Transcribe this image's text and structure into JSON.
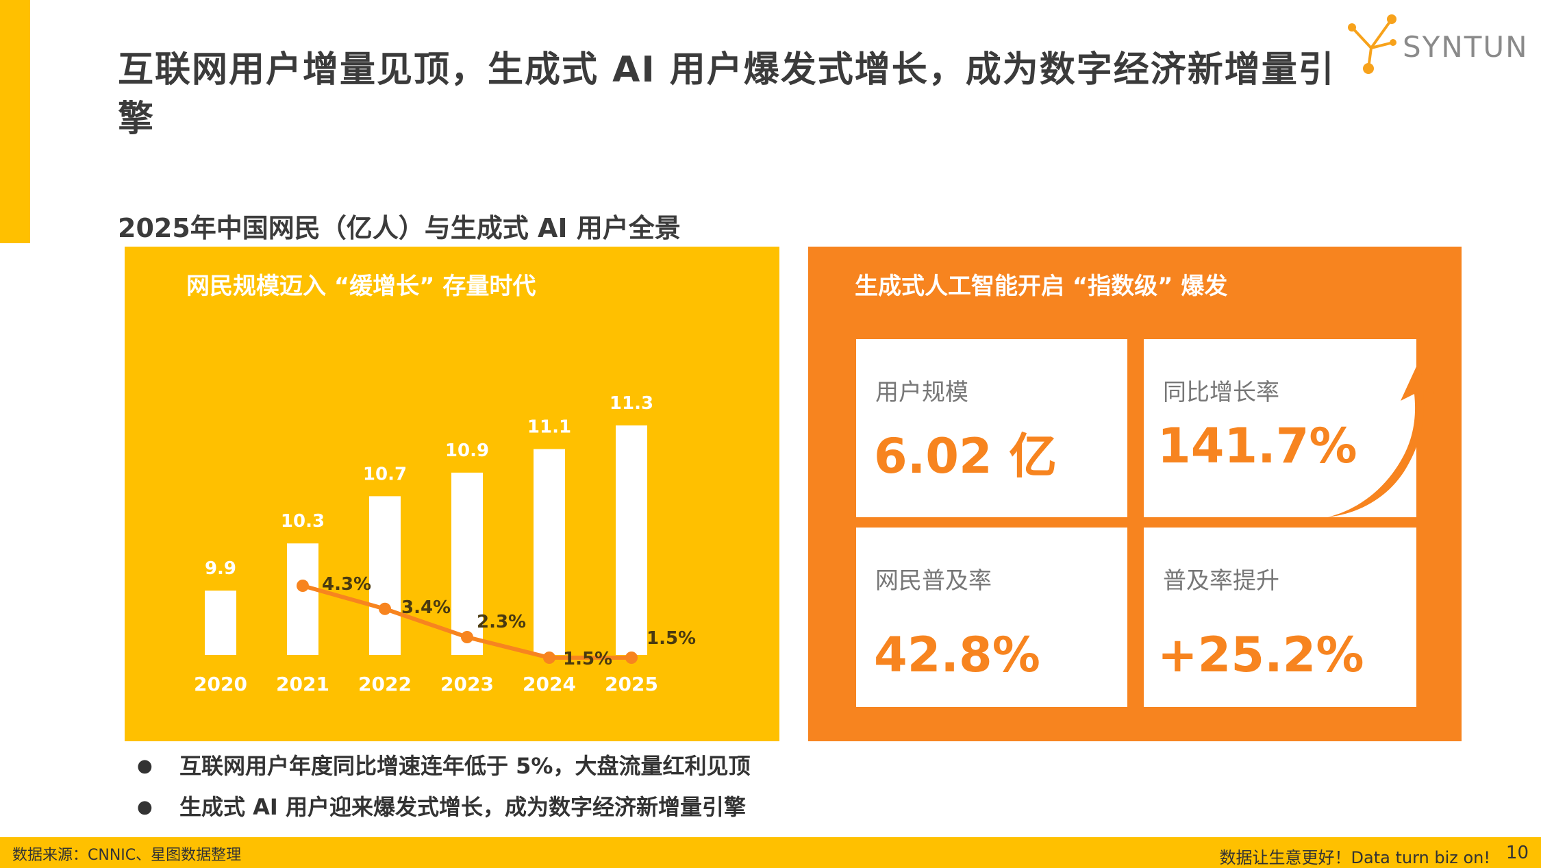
{
  "header": {
    "title": "互联网用户增量见顶，生成式 AI 用户爆发式增长，成为数字经济新增量引擎",
    "logo_text": "SYNTUN"
  },
  "subtitle": "2025年中国网民（亿人）与生成式 AI 用户全景",
  "left_panel": {
    "heading": "网民规模迈入 “缓增长” 存量时代"
  },
  "chart_data": {
    "type": "bar",
    "categories": [
      "2020",
      "2021",
      "2022",
      "2023",
      "2024",
      "2025"
    ],
    "series": [
      {
        "values": [
          9.9,
          10.3,
          10.7,
          10.9,
          11.1,
          11.3
        ],
        "labels": [
          "9.9",
          "10.3",
          "10.7",
          "10.9",
          "11.1",
          "11.3"
        ],
        "color": "#FFFFFF"
      },
      {
        "type": "line",
        "x": [
          "2021",
          "2022",
          "2023",
          "2024",
          "2025"
        ],
        "values": [
          4.3,
          3.4,
          2.3,
          1.5,
          1.5
        ],
        "labels": [
          "4.3%",
          "3.4%",
          "2.3%",
          "1.5%",
          "1.5%"
        ],
        "color": "#F7841F"
      }
    ]
  },
  "right_panel": {
    "heading": "生成式人工智能开启 “指数级” 爆发",
    "cards": [
      {
        "label": "用户规模",
        "value": "6.02 亿"
      },
      {
        "label": "同比增长率",
        "value": "141.7%"
      },
      {
        "label": "网民普及率",
        "value": "42.8%"
      },
      {
        "label": "普及率提升",
        "value": "+25.2%"
      }
    ]
  },
  "bullets": [
    "互联网用户年度同比增速连年低于 5%，大盘流量红利见顶",
    "生成式 AI 用户迎来爆发式增长，成为数字经济新增量引擎"
  ],
  "footer": {
    "source": "数据来源：CNNIC、星图数据整理",
    "slogan": "数据让生意更好！Data turn biz on!",
    "page": "10"
  },
  "colors": {
    "accent_yellow": "#FFC000",
    "accent_orange": "#F7841F"
  }
}
